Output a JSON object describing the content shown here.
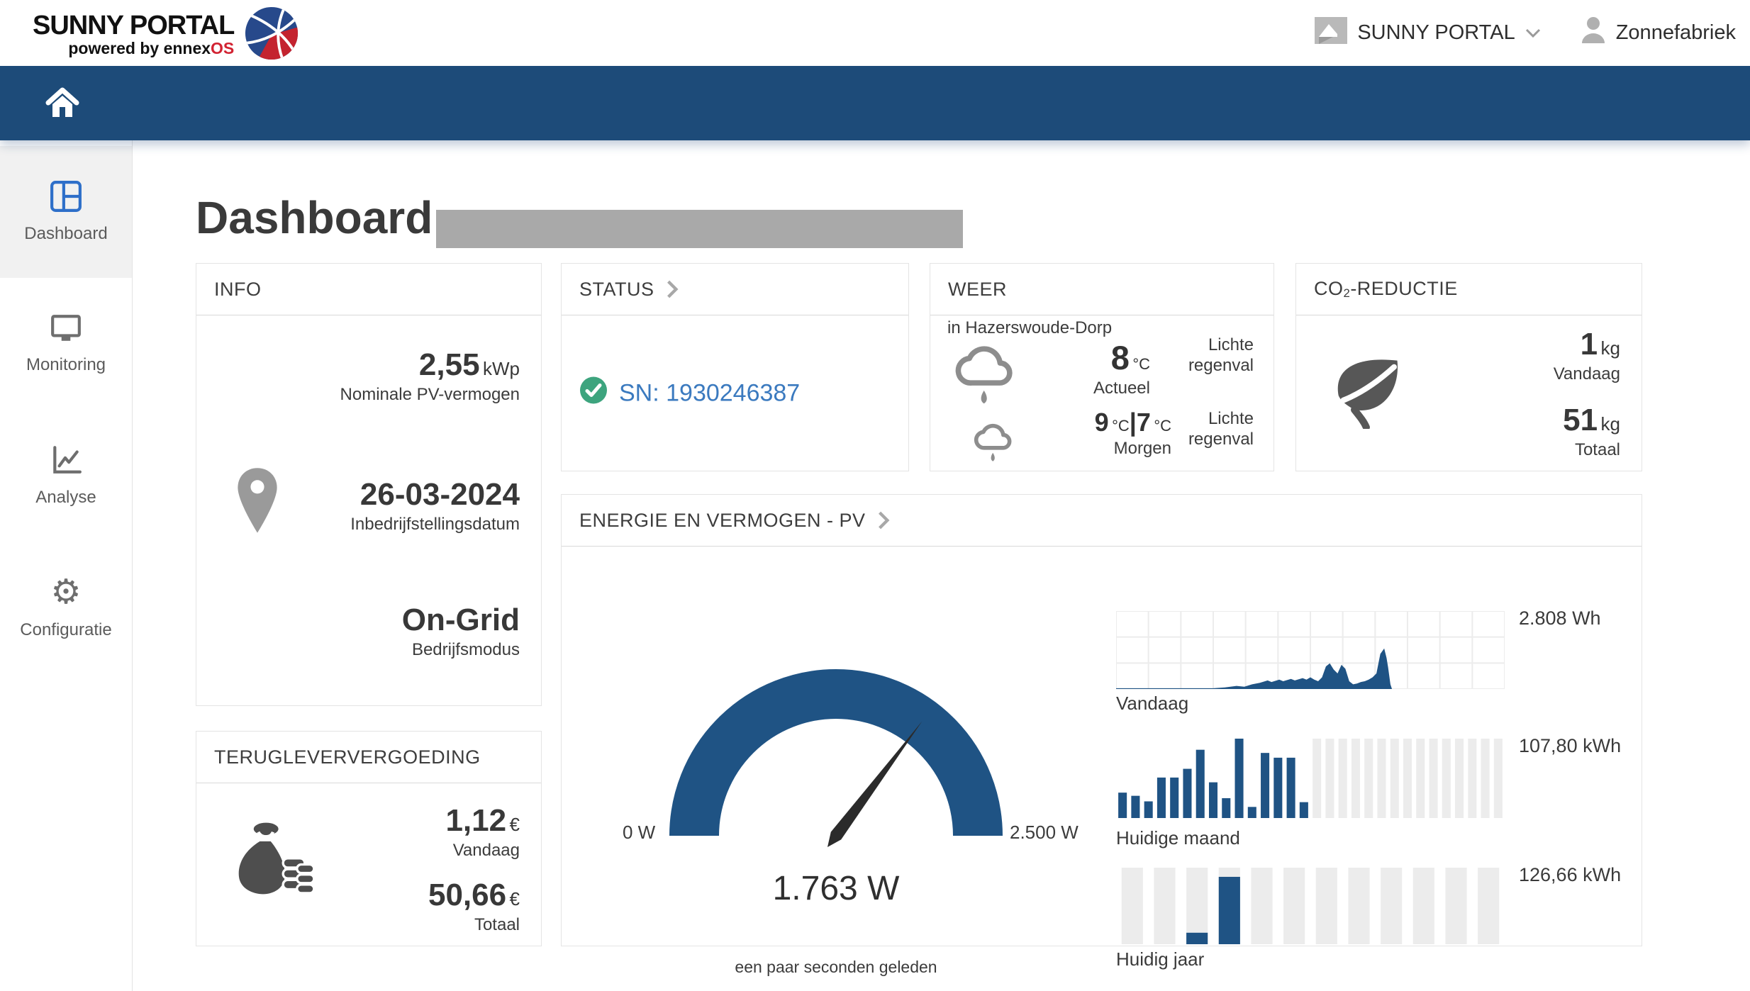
{
  "colors": {
    "navbar_navy": "#1d4b79",
    "chart_blue": "#1f5384",
    "placeholder_gray": "#ececec",
    "link_blue": "#3b7abf",
    "check_green": "#3da47e",
    "brand_red": "#d22332",
    "title_bar_gray": "#a9a9a9"
  },
  "header": {
    "brand_title": "SUNNY PORTAL",
    "brand_sub_prefix": "powered by ennex",
    "brand_sub_accent": "OS",
    "plant_name": "SUNNY PORTAL",
    "user_name": "Zonnefabriek"
  },
  "sidebar": {
    "items": [
      {
        "label": "Dashboard",
        "active": true
      },
      {
        "label": "Monitoring",
        "active": false
      },
      {
        "label": "Analyse",
        "active": false
      },
      {
        "label": "Configuratie",
        "active": false
      }
    ]
  },
  "page": {
    "title": "Dashboard"
  },
  "cards": {
    "info": {
      "title": "INFO",
      "rows": [
        {
          "value": "2,55",
          "unit": "kWp",
          "label": "Nominale PV-vermogen"
        },
        {
          "value": "26-03-2024",
          "unit": "",
          "label": "Inbedrijfstellingsdatum"
        },
        {
          "value": "On-Grid",
          "unit": "",
          "label": "Bedrijfsmodus"
        }
      ]
    },
    "status": {
      "title": "STATUS",
      "serial": "SN: 1930246387"
    },
    "weather": {
      "title": "WEER",
      "location": "in Hazerswoude-Dorp",
      "current": {
        "temp": "8",
        "deg": "°C",
        "label": "Actueel",
        "condition": "Lichte regenval"
      },
      "forecast": {
        "temp_high": "9",
        "deg": "°C",
        "sep": "|",
        "temp_low": "7",
        "label": "Morgen",
        "condition": "Lichte regenval"
      }
    },
    "co2": {
      "title_co": "CO",
      "title_sub": "2",
      "title_rest": "-REDUCTIE",
      "today": {
        "value": "1",
        "unit": "kg",
        "label": "Vandaag"
      },
      "total": {
        "value": "51",
        "unit": "kg",
        "label": "Totaal"
      }
    },
    "feedin": {
      "title": "TERUGLEVERVERGOEDING",
      "today": {
        "value": "1,12",
        "unit": "€",
        "label": "Vandaag"
      },
      "total": {
        "value": "50,66",
        "unit": "€",
        "label": "Totaal"
      }
    },
    "energy": {
      "title": "ENERGIE EN VERMOGEN - PV"
    }
  },
  "chart_data": {
    "gauge": {
      "type": "gauge",
      "min": 0,
      "max": 2500,
      "value": 1763,
      "min_label": "0 W",
      "max_label": "2.500 W",
      "value_label": "1.763 W",
      "updated": "een paar seconden geleden",
      "color": "#1f5384",
      "needle_color": "#2b2b2b"
    },
    "today": {
      "type": "area",
      "label": "Vandaag",
      "total_label": "2.808 Wh",
      "grid": {
        "cols": 12,
        "rows": 3
      },
      "points_pct": [
        [
          0,
          1
        ],
        [
          25,
          1
        ],
        [
          28,
          2
        ],
        [
          31,
          4
        ],
        [
          33,
          3
        ],
        [
          35,
          6
        ],
        [
          37,
          8
        ],
        [
          39,
          11
        ],
        [
          40,
          9
        ],
        [
          42,
          12
        ],
        [
          43,
          10
        ],
        [
          45,
          13
        ],
        [
          46,
          11
        ],
        [
          48,
          14
        ],
        [
          49,
          12
        ],
        [
          50,
          15
        ],
        [
          51,
          12
        ],
        [
          52,
          10
        ],
        [
          53,
          15
        ],
        [
          54,
          29
        ],
        [
          55,
          33
        ],
        [
          56,
          25
        ],
        [
          57,
          20
        ],
        [
          58,
          31
        ],
        [
          59,
          26
        ],
        [
          60,
          10
        ],
        [
          61,
          6
        ],
        [
          62,
          7
        ],
        [
          63,
          9
        ],
        [
          64,
          10
        ],
        [
          65,
          12
        ],
        [
          66,
          15
        ],
        [
          67,
          20
        ],
        [
          68,
          45
        ],
        [
          69,
          52
        ],
        [
          69.6,
          40
        ],
        [
          70,
          28
        ],
        [
          70.6,
          6
        ],
        [
          71,
          0
        ]
      ]
    },
    "month": {
      "type": "bar",
      "label": "Huidige maand",
      "total_label": "107,80 kWh",
      "slots": 30,
      "overlay_on_placeholder": false,
      "values_rel": [
        0.32,
        0.28,
        0.21,
        0.51,
        0.51,
        0.62,
        0.86,
        0.45,
        0.25,
        1.0,
        0.14,
        0.82,
        0.76,
        0.76,
        0.2,
        null,
        null,
        null,
        null,
        null,
        null,
        null,
        null,
        null,
        null,
        null,
        null,
        null,
        null,
        null
      ]
    },
    "year": {
      "type": "bar",
      "label": "Huidig jaar",
      "total_label": "126,66 kWh",
      "slots": 12,
      "overlay_on_placeholder": true,
      "values_rel": [
        null,
        null,
        0.15,
        0.88,
        null,
        null,
        null,
        null,
        null,
        null,
        null,
        null
      ]
    }
  }
}
